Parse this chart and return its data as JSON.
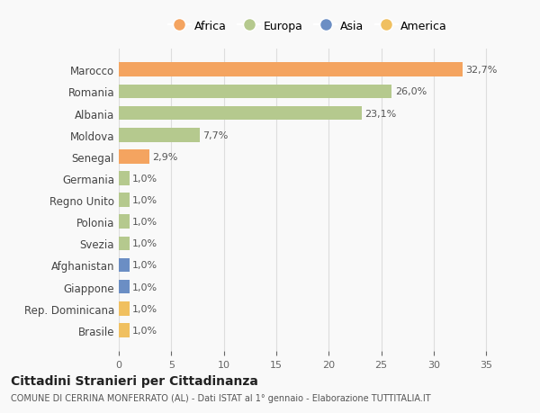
{
  "countries": [
    "Marocco",
    "Romania",
    "Albania",
    "Moldova",
    "Senegal",
    "Germania",
    "Regno Unito",
    "Polonia",
    "Svezia",
    "Afghanistan",
    "Giappone",
    "Rep. Dominicana",
    "Brasile"
  ],
  "values": [
    32.7,
    26.0,
    23.1,
    7.7,
    2.9,
    1.0,
    1.0,
    1.0,
    1.0,
    1.0,
    1.0,
    1.0,
    1.0
  ],
  "labels": [
    "32,7%",
    "26,0%",
    "23,1%",
    "7,7%",
    "2,9%",
    "1,0%",
    "1,0%",
    "1,0%",
    "1,0%",
    "1,0%",
    "1,0%",
    "1,0%",
    "1,0%"
  ],
  "colors": [
    "#F4A460",
    "#B5C98E",
    "#B5C98E",
    "#B5C98E",
    "#F4A460",
    "#B5C98E",
    "#B5C98E",
    "#B5C98E",
    "#B5C98E",
    "#6B8EC4",
    "#6B8EC4",
    "#F0C060",
    "#F0C060"
  ],
  "legend_labels": [
    "Africa",
    "Europa",
    "Asia",
    "America"
  ],
  "legend_colors": [
    "#F4A460",
    "#B5C98E",
    "#6B8EC4",
    "#F0C060"
  ],
  "xlim": [
    0,
    36
  ],
  "xticks": [
    0,
    5,
    10,
    15,
    20,
    25,
    30,
    35
  ],
  "title": "Cittadini Stranieri per Cittadinanza",
  "subtitle": "COMUNE DI CERRINA MONFERRATO (AL) - Dati ISTAT al 1° gennaio - Elaborazione TUTTITALIA.IT",
  "bg_color": "#f9f9f9",
  "grid_color": "#dddddd"
}
